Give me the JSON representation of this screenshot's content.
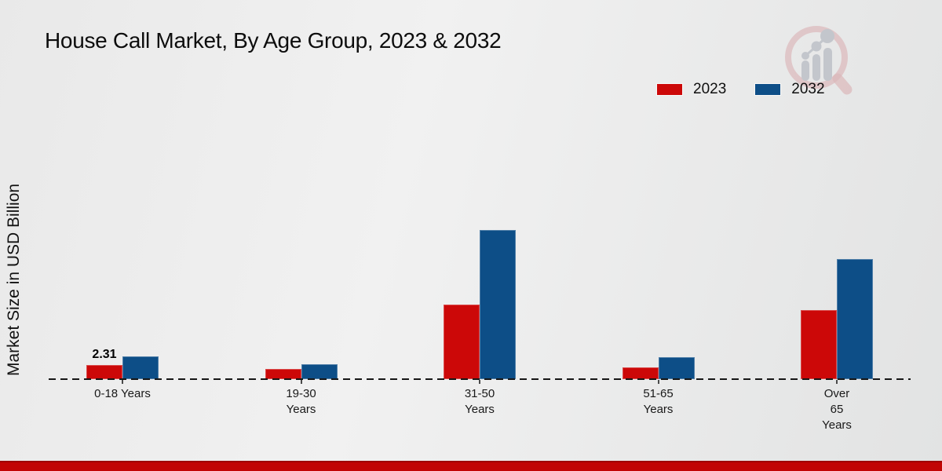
{
  "title": "House Call Market, By Age Group, 2023 & 2032",
  "ylabel": "Market Size in USD Billion",
  "legend": {
    "items": [
      {
        "label": "2023",
        "color": "#cc0808"
      },
      {
        "label": "2032",
        "color": "#0d4e87"
      }
    ]
  },
  "logo": {
    "name": "market-research-future-watermark"
  },
  "footer": {
    "bar_color": "#c10404",
    "bar_top_color": "#9e0202"
  },
  "chart_data": {
    "type": "bar",
    "title": "House Call Market, By Age Group, 2023 & 2032",
    "xlabel": "",
    "ylabel": "Market Size in USD Billion",
    "ylim": [
      0,
      26
    ],
    "grid": false,
    "legend_position": "top-right",
    "categories": [
      "0-18 Years",
      "19-30 Years",
      "31-50 Years",
      "51-65 Years",
      "Over 65 Years"
    ],
    "category_label_lines": [
      [
        "0-18 Years"
      ],
      [
        "19-30",
        "Years"
      ],
      [
        "31-50",
        "Years"
      ],
      [
        "51-65",
        "Years"
      ],
      [
        "Over",
        "65",
        "Years"
      ]
    ],
    "series": [
      {
        "name": "2023",
        "color": "#cc0808",
        "values": [
          2.31,
          1.65,
          12.4,
          2.0,
          11.5
        ]
      },
      {
        "name": "2032",
        "color": "#0d4e87",
        "values": [
          3.85,
          2.48,
          24.8,
          3.65,
          20.0
        ]
      }
    ],
    "value_labels": [
      {
        "series": "2023",
        "category": "0-18 Years",
        "text": "2.31"
      }
    ]
  }
}
